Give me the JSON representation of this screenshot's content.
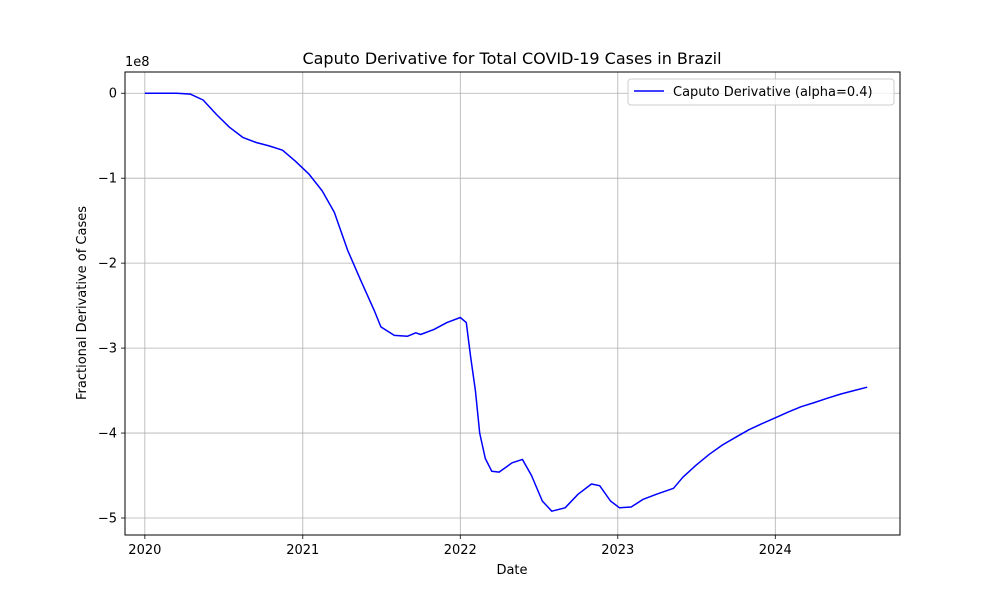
{
  "chart_data": {
    "type": "line",
    "title": "Caputo Derivative for Total COVID-19 Cases in Brazil",
    "xlabel": "Date",
    "ylabel": "Fractional Derivative of Cases",
    "y_offset_text": "1e8",
    "xlim": [
      "2019-11-16",
      "2024-10-16"
    ],
    "ylim": [
      -5.2,
      0.25
    ],
    "x_ticks": [
      "2020",
      "2021",
      "2022",
      "2023",
      "2024"
    ],
    "y_ticks": [
      0,
      -1,
      -2,
      -3,
      -4,
      -5
    ],
    "y_tick_labels": [
      "0",
      "−1",
      "−2",
      "−3",
      "−4",
      "−5"
    ],
    "grid": true,
    "legend_position": "upper right",
    "series": [
      {
        "name": "Caputo Derivative (alpha=0.4)",
        "color": "#0000ff",
        "points": [
          [
            "2020-01-01",
            0.0
          ],
          [
            "2020-02-01",
            0.0
          ],
          [
            "2020-03-15",
            0.0
          ],
          [
            "2020-04-15",
            -0.01
          ],
          [
            "2020-05-15",
            -0.08
          ],
          [
            "2020-06-15",
            -0.25
          ],
          [
            "2020-07-15",
            -0.4
          ],
          [
            "2020-08-15",
            -0.52
          ],
          [
            "2020-09-15",
            -0.58
          ],
          [
            "2020-10-15",
            -0.62
          ],
          [
            "2020-11-15",
            -0.67
          ],
          [
            "2020-12-15",
            -0.8
          ],
          [
            "2021-01-15",
            -0.95
          ],
          [
            "2021-02-15",
            -1.15
          ],
          [
            "2021-03-15",
            -1.4
          ],
          [
            "2021-04-15",
            -1.85
          ],
          [
            "2021-05-15",
            -2.2
          ],
          [
            "2021-06-15",
            -2.55
          ],
          [
            "2021-07-01",
            -2.75
          ],
          [
            "2021-08-01",
            -2.85
          ],
          [
            "2021-09-01",
            -2.86
          ],
          [
            "2021-09-20",
            -2.82
          ],
          [
            "2021-10-01",
            -2.84
          ],
          [
            "2021-11-01",
            -2.78
          ],
          [
            "2021-12-01",
            -2.7
          ],
          [
            "2022-01-01",
            -2.64
          ],
          [
            "2022-01-15",
            -2.7
          ],
          [
            "2022-01-25",
            -3.1
          ],
          [
            "2022-02-05",
            -3.5
          ],
          [
            "2022-02-15",
            -4.0
          ],
          [
            "2022-02-28",
            -4.3
          ],
          [
            "2022-03-15",
            -4.45
          ],
          [
            "2022-04-01",
            -4.46
          ],
          [
            "2022-05-01",
            -4.35
          ],
          [
            "2022-05-25",
            -4.31
          ],
          [
            "2022-06-15",
            -4.5
          ],
          [
            "2022-07-10",
            -4.8
          ],
          [
            "2022-08-01",
            -4.92
          ],
          [
            "2022-09-01",
            -4.88
          ],
          [
            "2022-10-01",
            -4.72
          ],
          [
            "2022-11-01",
            -4.6
          ],
          [
            "2022-11-20",
            -4.62
          ],
          [
            "2022-12-15",
            -4.8
          ],
          [
            "2023-01-05",
            -4.88
          ],
          [
            "2023-02-01",
            -4.87
          ],
          [
            "2023-03-01",
            -4.78
          ],
          [
            "2023-04-01",
            -4.72
          ],
          [
            "2023-05-10",
            -4.65
          ],
          [
            "2023-06-01",
            -4.52
          ],
          [
            "2023-07-01",
            -4.38
          ],
          [
            "2023-08-01",
            -4.25
          ],
          [
            "2023-09-01",
            -4.14
          ],
          [
            "2023-10-01",
            -4.05
          ],
          [
            "2023-11-01",
            -3.96
          ],
          [
            "2023-12-01",
            -3.89
          ],
          [
            "2024-01-01",
            -3.82
          ],
          [
            "2024-02-01",
            -3.75
          ],
          [
            "2024-03-01",
            -3.69
          ],
          [
            "2024-04-01",
            -3.64
          ],
          [
            "2024-05-01",
            -3.59
          ],
          [
            "2024-06-01",
            -3.54
          ],
          [
            "2024-07-01",
            -3.5
          ],
          [
            "2024-08-01",
            -3.46
          ]
        ]
      }
    ]
  }
}
